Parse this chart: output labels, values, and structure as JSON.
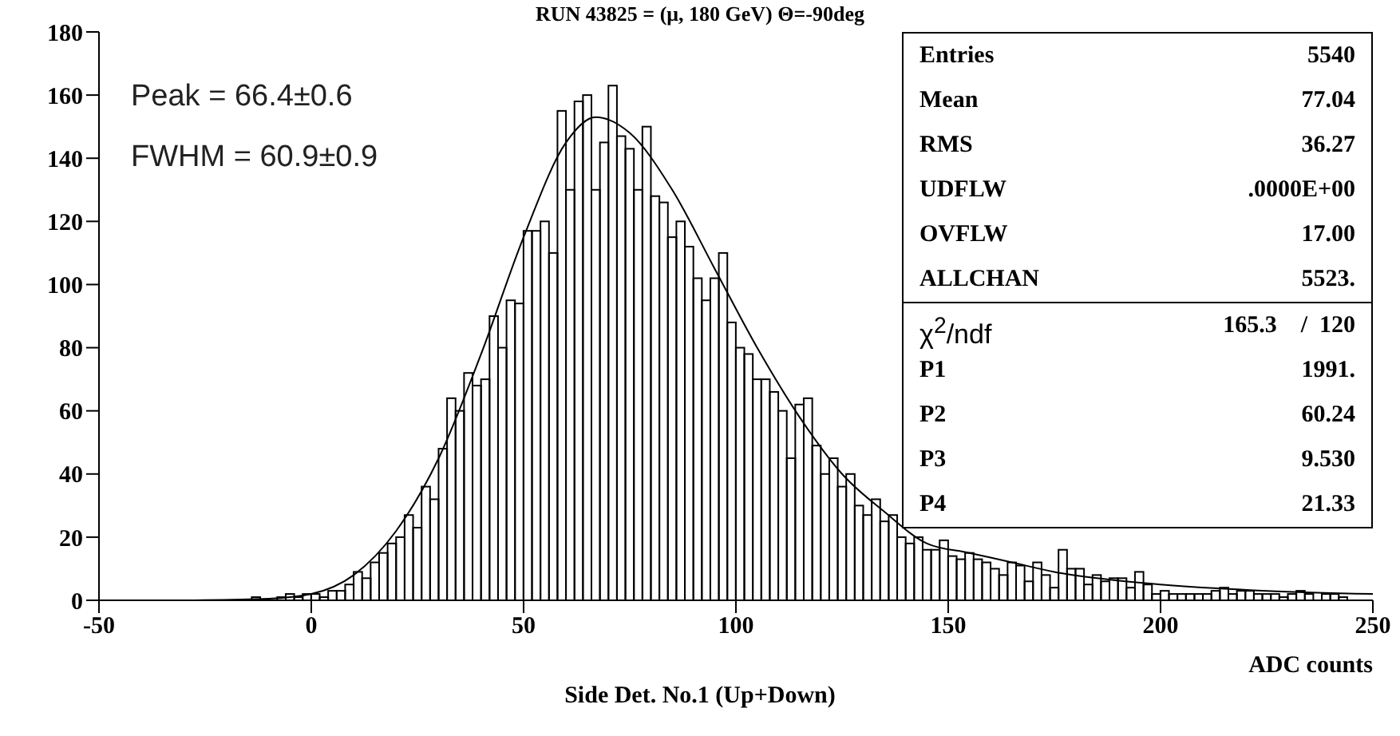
{
  "chart_data": {
    "type": "histogram",
    "title": "RUN 43825 = (μ, 180 GeV) Θ=-90deg",
    "subtitle": "Side Det. No.1 (Up+Down)",
    "xlabel": "ADC counts",
    "bins": [
      -50,
      -48,
      -46,
      -44,
      -42,
      -40,
      -38,
      -36,
      -34,
      -32,
      -30,
      -28,
      -26,
      -24,
      -22,
      -20,
      -18,
      -16,
      -14,
      -12,
      -10,
      -8,
      -6,
      -4,
      -2,
      0,
      2,
      4,
      6,
      8,
      10,
      12,
      14,
      16,
      18,
      20,
      22,
      24,
      26,
      28,
      30,
      32,
      34,
      36,
      38,
      40,
      42,
      44,
      46,
      48,
      50,
      52,
      54,
      56,
      58,
      60,
      62,
      64,
      66,
      68,
      70,
      72,
      74,
      76,
      78,
      80,
      82,
      84,
      86,
      88,
      90,
      92,
      94,
      96,
      98,
      100,
      102,
      104,
      106,
      108,
      110,
      112,
      114,
      116,
      118,
      120,
      122,
      124,
      126,
      128,
      130,
      132,
      134,
      136,
      138,
      140,
      142,
      144,
      146,
      148,
      150,
      152,
      154,
      156,
      158,
      160,
      162,
      164,
      166,
      168,
      170,
      172,
      174,
      176,
      178,
      180,
      182,
      184,
      186,
      188,
      190,
      192,
      194,
      196,
      198,
      200,
      202,
      204,
      206,
      208,
      210,
      212,
      214,
      216,
      218,
      220,
      222,
      224,
      226,
      228,
      230,
      232,
      234,
      236,
      238,
      240,
      242,
      244,
      246,
      248,
      250
    ],
    "values": [
      0,
      0,
      0,
      0,
      0,
      0,
      0,
      0,
      0,
      0,
      0,
      0,
      0,
      0,
      0,
      0,
      0,
      0,
      1,
      0,
      0,
      1,
      2,
      1,
      2,
      2,
      1,
      3,
      3,
      5,
      9,
      7,
      12,
      15,
      18,
      20,
      27,
      23,
      36,
      32,
      48,
      64,
      60,
      72,
      68,
      70,
      90,
      80,
      95,
      94,
      117,
      117,
      120,
      110,
      155,
      130,
      158,
      160,
      130,
      145,
      163,
      147,
      143,
      130,
      150,
      128,
      126,
      115,
      120,
      112,
      102,
      95,
      102,
      110,
      88,
      80,
      78,
      70,
      70,
      66,
      60,
      45,
      62,
      64,
      49,
      40,
      45,
      36,
      40,
      30,
      27,
      32,
      25,
      27,
      20,
      18,
      20,
      16,
      16,
      19,
      14,
      13,
      15,
      13,
      12,
      10,
      8,
      12,
      11,
      6,
      12,
      8,
      4,
      16,
      10,
      10,
      5,
      8,
      6,
      7,
      7,
      4,
      9,
      5,
      2,
      3,
      2,
      2,
      2,
      2,
      2,
      3,
      4,
      2,
      3,
      3,
      2,
      2,
      2,
      1,
      2,
      3,
      2,
      0,
      2,
      2,
      1,
      0,
      0,
      0
    ],
    "color": "#000000",
    "series": [
      {
        "type": "line",
        "color": "#000000",
        "x": [
          -30,
          -10,
          0,
          10,
          20,
          30,
          40,
          50,
          60,
          67,
          75,
          85,
          95,
          105,
          115,
          125,
          135,
          145,
          155,
          165,
          175,
          185,
          200,
          225,
          250
        ],
        "values": [
          0,
          0.5,
          2,
          8,
          22,
          45,
          78,
          115,
          145,
          153,
          148,
          130,
          105,
          80,
          58,
          40,
          28,
          18,
          15,
          12,
          9,
          7,
          5,
          3,
          2
        ]
      }
    ],
    "xlim": [
      -50,
      250
    ],
    "xticks": [
      -50,
      0,
      50,
      100,
      150,
      200,
      250
    ],
    "ylim": [
      0,
      180
    ],
    "yticks": [
      0,
      20,
      40,
      60,
      80,
      100,
      120,
      140,
      160,
      180
    ],
    "grid": false,
    "legend": false,
    "annotations": [
      "Peak = 66.4±0.6",
      "FWHM = 60.9±0.9",
      "Entries",
      "5540",
      "Mean",
      "77.04",
      "RMS",
      "36.27",
      "UDFLW",
      ".0000E+00",
      "OVFLW",
      "17.00",
      "ALLCHAN",
      "5523.",
      "χ$^{2}$/ndf",
      "165.3    /  120",
      "P1",
      "1991.",
      "P2",
      "60.24",
      "P3",
      "9.530",
      "P4",
      "21.33"
    ]
  }
}
